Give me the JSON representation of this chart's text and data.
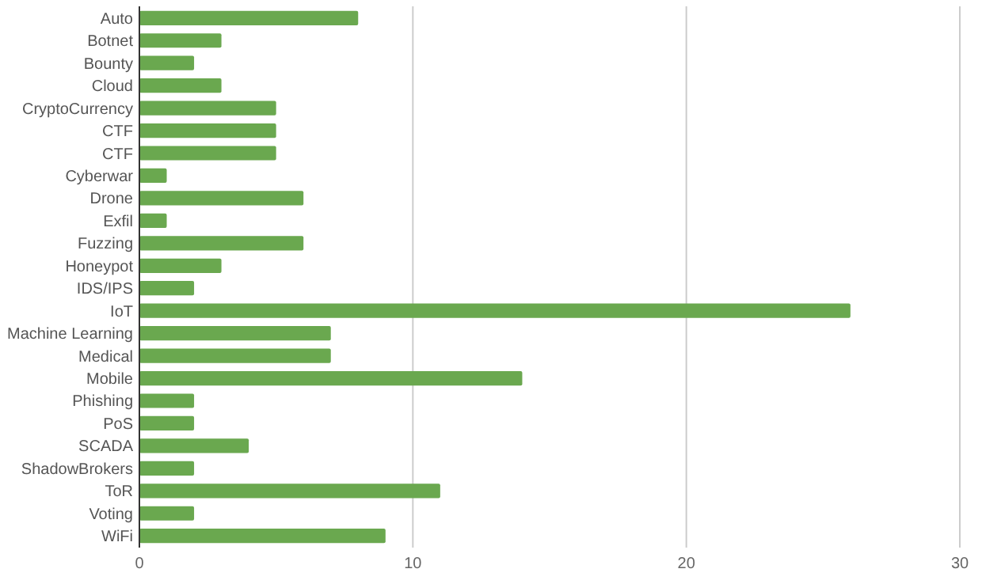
{
  "chart_data": {
    "type": "bar",
    "orientation": "horizontal",
    "categories": [
      "Auto",
      "Botnet",
      "Bounty",
      "Cloud",
      "CryptoCurrency",
      "CTF",
      "CTF",
      "Cyberwar",
      "Drone",
      "Exfil",
      "Fuzzing",
      "Honeypot",
      "IDS/IPS",
      "IoT",
      "Machine Learning",
      "Medical",
      "Mobile",
      "Phishing",
      "PoS",
      "SCADA",
      "ShadowBrokers",
      "ToR",
      "Voting",
      "WiFi"
    ],
    "values": [
      8,
      3,
      2,
      3,
      5,
      5,
      5,
      1,
      6,
      1,
      6,
      3,
      2,
      26,
      7,
      7,
      14,
      2,
      2,
      4,
      2,
      11,
      2,
      9
    ],
    "color": "#6aa84f",
    "xlim": [
      0,
      30
    ],
    "xticks": [
      0,
      10,
      20,
      30
    ],
    "grid": "x"
  }
}
